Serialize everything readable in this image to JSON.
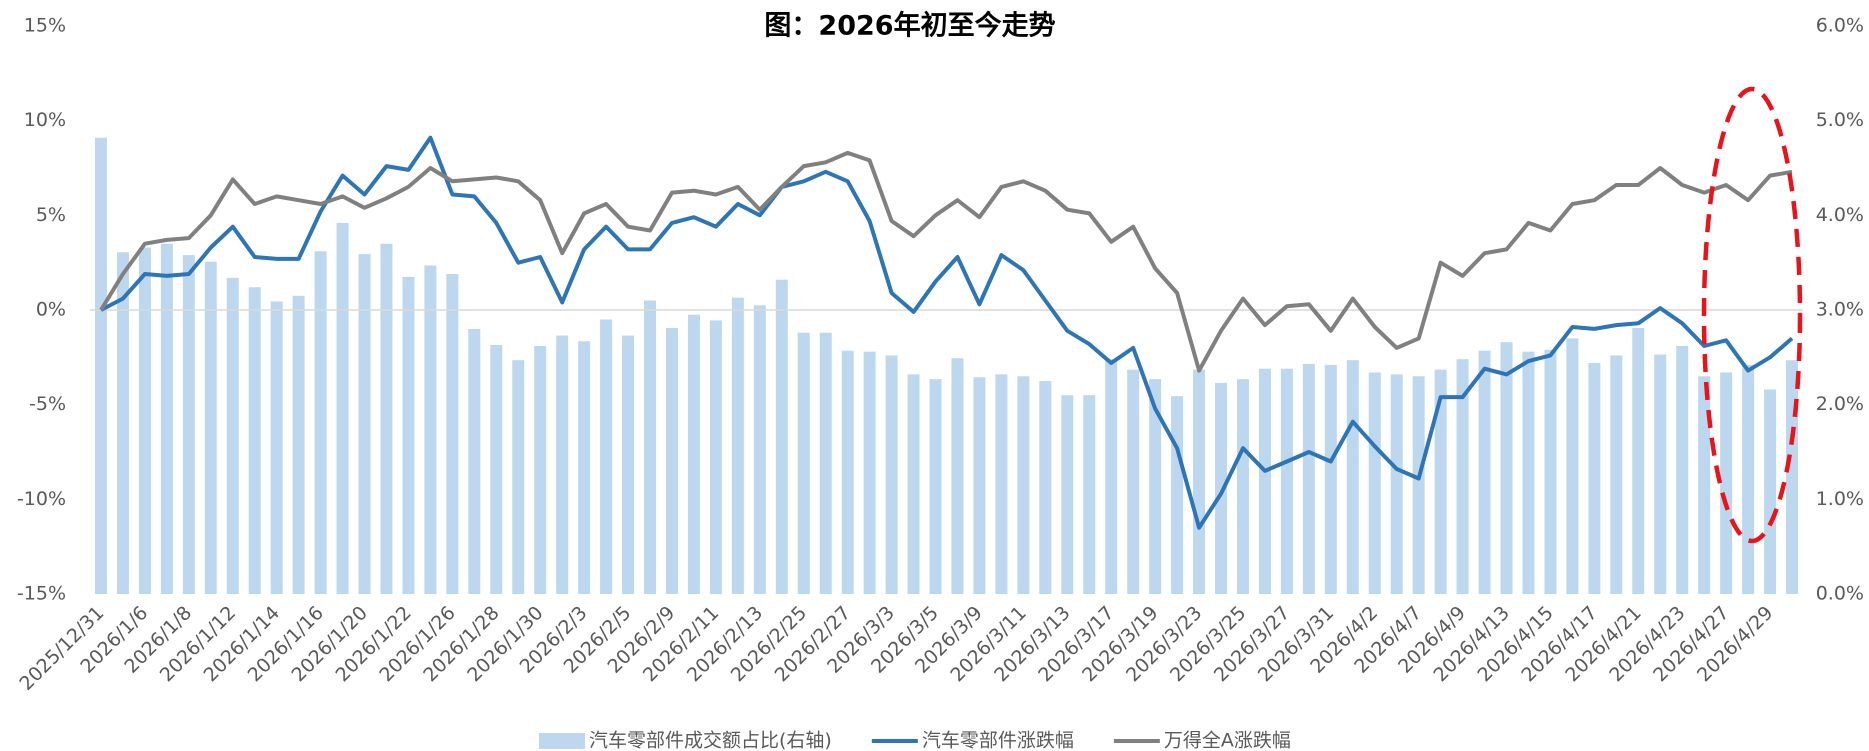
{
  "chart_data": {
    "type": "bar",
    "title": "图：2026年初至今走势",
    "categories": [
      "2025/12/31",
      null,
      "2026/1/6",
      null,
      "2026/1/8",
      null,
      "2026/1/12",
      null,
      "2026/1/14",
      null,
      "2026/1/16",
      null,
      "2026/1/20",
      null,
      "2026/1/22",
      null,
      "2026/1/26",
      null,
      "2026/1/28",
      null,
      "2026/1/30",
      null,
      "2026/2/3",
      null,
      "2026/2/5",
      null,
      "2026/2/9",
      null,
      "2026/2/11",
      null,
      "2026/2/13",
      null,
      "2026/2/25",
      null,
      "2026/2/27",
      null,
      "2026/3/3",
      null,
      "2026/3/5",
      null,
      "2026/3/9",
      null,
      "2026/3/11",
      null,
      "2026/3/13",
      null,
      "2026/3/17",
      null,
      "2026/3/19",
      null,
      "2026/3/23",
      null,
      "2026/3/25",
      null,
      "2026/3/27",
      null,
      "2026/3/31",
      null,
      "2026/4/2",
      null,
      "2026/4/7",
      null,
      "2026/4/9",
      null,
      "2026/4/13",
      null,
      "2026/4/15",
      null,
      "2026/4/17",
      null,
      "2026/4/21",
      null,
      "2026/4/23",
      null,
      "2026/4/27",
      null,
      "2026/4/29",
      null
    ],
    "series": [
      {
        "name": "汽车零部件成交额占比(右轴)",
        "type": "bar",
        "axis": "y2",
        "color": "#bdd7ee",
        "values": [
          4.82,
          3.61,
          3.66,
          3.7,
          3.58,
          3.51,
          3.34,
          3.24,
          3.09,
          3.15,
          3.62,
          3.92,
          3.59,
          3.7,
          3.35,
          3.47,
          3.38,
          2.8,
          2.63,
          2.47,
          2.62,
          2.73,
          2.67,
          2.9,
          2.73,
          3.1,
          2.81,
          2.95,
          2.89,
          3.13,
          3.05,
          3.32,
          2.76,
          2.76,
          2.57,
          2.56,
          2.52,
          2.32,
          2.27,
          2.49,
          2.29,
          2.32,
          2.3,
          2.25,
          2.1,
          2.1,
          2.48,
          2.37,
          2.27,
          2.09,
          2.37,
          2.23,
          2.27,
          2.38,
          2.38,
          2.43,
          2.42,
          2.47,
          2.34,
          2.32,
          2.3,
          2.37,
          2.48,
          2.57,
          2.66,
          2.56,
          2.58,
          2.7,
          2.44,
          2.52,
          2.81,
          2.53,
          2.62,
          2.3,
          2.34,
          2.42,
          2.16,
          2.47
        ]
      },
      {
        "name": "汽车零部件涨跌幅",
        "type": "line",
        "color": "#2e75b6",
        "values": [
          0,
          0.6,
          1.9,
          1.8,
          1.9,
          3.3,
          4.4,
          2.8,
          2.7,
          2.7,
          5.2,
          7.1,
          6.1,
          7.6,
          7.4,
          9.1,
          6.1,
          6.0,
          4.6,
          2.5,
          2.8,
          0.4,
          3.2,
          4.4,
          3.2,
          3.2,
          4.6,
          4.9,
          4.4,
          5.6,
          5.0,
          6.5,
          6.8,
          7.3,
          6.8,
          4.7,
          0.9,
          -0.1,
          1.5,
          2.8,
          0.3,
          2.9,
          2.1,
          0.5,
          -1.1,
          -1.8,
          -2.8,
          -2.0,
          -5.2,
          -7.3,
          -11.5,
          -9.7,
          -7.3,
          -8.5,
          -8.0,
          -7.5,
          -8.0,
          -5.9,
          -7.2,
          -8.4,
          -8.9,
          -4.6,
          -4.6,
          -3.1,
          -3.4,
          -2.7,
          -2.4,
          -0.9,
          -1.0,
          -0.8,
          -0.7,
          0.1,
          -0.7,
          -1.9,
          -1.6,
          -3.2,
          -2.5,
          -1.5
        ]
      },
      {
        "name": "万得全A涨跌幅",
        "type": "line",
        "color": "#808080",
        "values": [
          0,
          1.9,
          3.5,
          3.7,
          3.8,
          5.0,
          6.9,
          5.6,
          6.0,
          5.8,
          5.6,
          6.0,
          5.4,
          5.9,
          6.5,
          7.5,
          6.8,
          6.9,
          7.0,
          6.8,
          5.8,
          3.0,
          5.1,
          5.6,
          4.4,
          4.2,
          6.2,
          6.3,
          6.1,
          6.5,
          5.3,
          6.5,
          7.6,
          7.8,
          8.3,
          7.9,
          4.7,
          3.9,
          5.0,
          5.8,
          4.9,
          6.5,
          6.8,
          6.3,
          5.3,
          5.1,
          3.6,
          4.4,
          2.2,
          0.9,
          -3.2,
          -1.1,
          0.6,
          -0.8,
          0.2,
          0.3,
          -1.1,
          0.6,
          -0.9,
          -2.0,
          -1.5,
          2.5,
          1.8,
          3.0,
          3.2,
          4.6,
          4.2,
          5.6,
          5.8,
          6.6,
          6.6,
          7.5,
          6.6,
          6.2,
          6.6,
          5.8,
          7.1,
          7.3
        ]
      }
    ],
    "ylim": [
      -15,
      15
    ],
    "yticks": [
      {
        "value": -15,
        "label": "-15%"
      },
      {
        "value": -10,
        "label": "-10%"
      },
      {
        "value": -5,
        "label": "-5%"
      },
      {
        "value": 0,
        "label": "0%"
      },
      {
        "value": 5,
        "label": "5%"
      },
      {
        "value": 10,
        "label": "10%"
      },
      {
        "value": 15,
        "label": "15%"
      }
    ],
    "y2lim": [
      0,
      6
    ],
    "y2ticks": [
      {
        "value": 0,
        "label": "0.0%"
      },
      {
        "value": 1,
        "label": "1.0%"
      },
      {
        "value": 2,
        "label": "2.0%"
      },
      {
        "value": 3,
        "label": "3.0%"
      },
      {
        "value": 4,
        "label": "4.0%"
      },
      {
        "value": 5,
        "label": "5.0%"
      },
      {
        "value": 6,
        "label": "6.0%"
      }
    ],
    "legend": "bottom"
  }
}
